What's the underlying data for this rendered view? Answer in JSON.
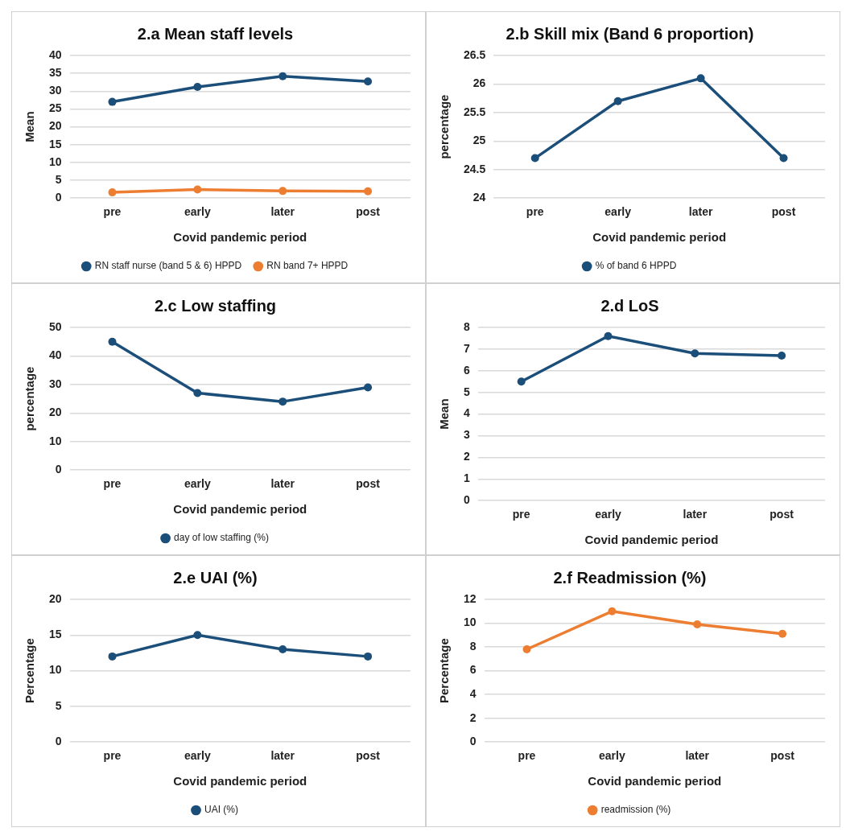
{
  "chart_data": [
    {
      "type": "line",
      "title": "2.a Mean staff levels",
      "xlabel": "Covid pandemic period",
      "ylabel": "Mean",
      "categories": [
        "pre",
        "early",
        "later",
        "post"
      ],
      "series": [
        {
          "name": "RN staff nurse (band 5 & 6) HPPD",
          "color": "#1b4f7a",
          "values": [
            27,
            31.2,
            34.2,
            32.7
          ]
        },
        {
          "name": "RN band 7+ HPPD",
          "color": "#ed7d31",
          "values": [
            1.6,
            2.4,
            2.0,
            1.9
          ]
        }
      ],
      "ylim": [
        0,
        40
      ],
      "yticks": [
        0,
        5,
        10,
        15,
        20,
        25,
        30,
        35,
        40
      ],
      "grid": "y",
      "legend": "bottom",
      "marker": "circle",
      "line_style": "solid"
    },
    {
      "type": "line",
      "title": "2.b Skill mix (Band 6 proportion)",
      "xlabel": "Covid pandemic period",
      "ylabel": "percentage",
      "categories": [
        "pre",
        "early",
        "later",
        "post"
      ],
      "series": [
        {
          "name": "% of band 6 HPPD",
          "color": "#1b4f7a",
          "values": [
            24.7,
            25.7,
            26.1,
            24.7
          ]
        }
      ],
      "ylim": [
        24,
        26.5
      ],
      "yticks": [
        24,
        24.5,
        25,
        25.5,
        26,
        26.5
      ],
      "grid": "y",
      "legend": "bottom",
      "marker": "circle",
      "line_style": "solid"
    },
    {
      "type": "line",
      "title": "2.c Low staffing",
      "xlabel": "Covid pandemic period",
      "ylabel": "percentage",
      "categories": [
        "pre",
        "early",
        "later",
        "post"
      ],
      "series": [
        {
          "name": "day of low staffing (%)",
          "color": "#1b4f7a",
          "values": [
            45,
            27,
            24,
            29
          ]
        }
      ],
      "ylim": [
        0,
        50
      ],
      "yticks": [
        0,
        10,
        20,
        30,
        40,
        50
      ],
      "grid": "y",
      "legend": "bottom",
      "marker": "circle",
      "line_style": "solid"
    },
    {
      "type": "line",
      "title": "2.d LoS",
      "xlabel": "Covid pandemic period",
      "ylabel": "Mean",
      "categories": [
        "pre",
        "early",
        "later",
        "post"
      ],
      "series": [
        {
          "color": "#1b4f7a",
          "values": [
            5.5,
            7.6,
            6.8,
            6.7
          ]
        }
      ],
      "ylim": [
        0,
        8
      ],
      "yticks": [
        0,
        1,
        2,
        3,
        4,
        5,
        6,
        7,
        8
      ],
      "grid": "y",
      "marker": "circle",
      "line_style": "solid"
    },
    {
      "type": "line",
      "title": "2.e UAI (%)",
      "xlabel": "Covid pandemic period",
      "ylabel": "Percentage",
      "categories": [
        "pre",
        "early",
        "later",
        "post"
      ],
      "series": [
        {
          "name": "UAI (%)",
          "color": "#1b4f7a",
          "values": [
            12,
            15,
            13,
            12
          ]
        }
      ],
      "ylim": [
        0,
        20
      ],
      "yticks": [
        0,
        5,
        10,
        15,
        20
      ],
      "grid": "y",
      "legend": "bottom",
      "marker": "circle",
      "line_style": "solid"
    },
    {
      "type": "line",
      "title": "2.f Readmission (%)",
      "xlabel": "Covid pandemic period",
      "ylabel": "Percentage",
      "categories": [
        "pre",
        "early",
        "later",
        "post"
      ],
      "series": [
        {
          "name": "readmission (%)",
          "color": "#ed7d31",
          "values": [
            7.8,
            11,
            9.9,
            9.1
          ]
        }
      ],
      "ylim": [
        0,
        12
      ],
      "yticks": [
        0,
        2,
        4,
        6,
        8,
        10,
        12
      ],
      "grid": "y",
      "legend": "bottom",
      "marker": "circle",
      "line_style": "solid"
    }
  ]
}
